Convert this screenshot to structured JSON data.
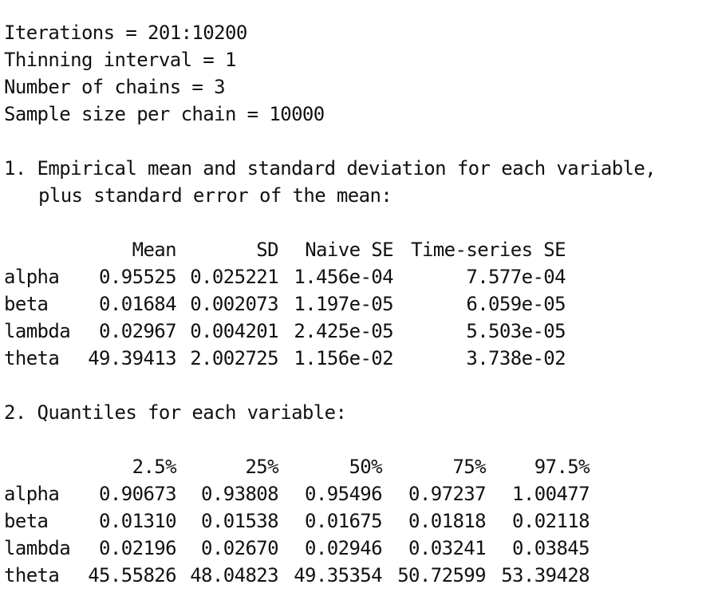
{
  "header": {
    "iterations": "Iterations = 201:10200",
    "thinning": "Thinning interval = 1",
    "chains": "Number of chains = 3",
    "sample_size": "Sample size per chain = 10000"
  },
  "section1": {
    "title_line1": "1. Empirical mean and standard deviation for each variable,",
    "title_line2": "plus standard error of the mean:",
    "columns": [
      "",
      "Mean",
      "SD",
      "Naive SE",
      "Time-series SE"
    ],
    "rows": [
      [
        "alpha",
        "0.95525",
        "0.025221",
        "1.456e-04",
        "7.577e-04"
      ],
      [
        "beta",
        "0.01684",
        "0.002073",
        "1.197e-05",
        "6.059e-05"
      ],
      [
        "lambda",
        "0.02967",
        "0.004201",
        "2.425e-05",
        "5.503e-05"
      ],
      [
        "theta",
        "49.39413",
        "2.002725",
        "1.156e-02",
        "3.738e-02"
      ]
    ]
  },
  "section2": {
    "title": "2. Quantiles for each variable:",
    "columns": [
      "",
      "2.5%",
      "25%",
      "50%",
      "75%",
      "97.5%"
    ],
    "rows": [
      [
        "alpha",
        "0.90673",
        "0.93808",
        "0.95496",
        "0.97237",
        "1.00477"
      ],
      [
        "beta",
        "0.01310",
        "0.01538",
        "0.01675",
        "0.01818",
        "0.02118"
      ],
      [
        "lambda",
        "0.02196",
        "0.02670",
        "0.02946",
        "0.03241",
        "0.03845"
      ],
      [
        "theta",
        "45.55826",
        "48.04823",
        "49.35354",
        "50.72599",
        "53.39428"
      ]
    ]
  }
}
